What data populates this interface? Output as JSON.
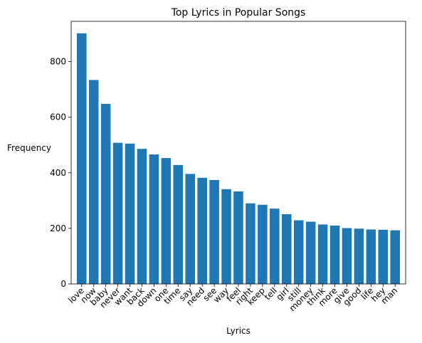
{
  "chart_data": {
    "type": "bar",
    "title": "Top Lyrics in Popular Songs",
    "xlabel": "Lyrics",
    "ylabel": "Frequency",
    "ylim": [
      0,
      945
    ],
    "yticks": [
      0,
      200,
      400,
      600,
      800
    ],
    "bar_color": "#1f77b4",
    "categories": [
      "love",
      "now",
      "baby",
      "never",
      "want",
      "back",
      "down",
      "one",
      "time",
      "say",
      "need",
      "see",
      "way",
      "feel",
      "right",
      "keep",
      "tell",
      "girl",
      "still",
      "money",
      "think",
      "more",
      "give",
      "good",
      "life",
      "hey",
      "man"
    ],
    "values": [
      902,
      734,
      648,
      508,
      505,
      486,
      466,
      453,
      428,
      396,
      382,
      374,
      341,
      333,
      290,
      285,
      271,
      251,
      229,
      224,
      214,
      210,
      201,
      199,
      196,
      195,
      193
    ]
  }
}
